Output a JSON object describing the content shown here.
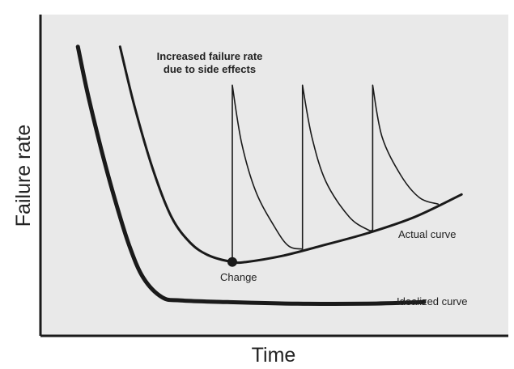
{
  "chart_data": {
    "type": "line",
    "title": "",
    "xlabel": "Time",
    "ylabel": "Failure rate",
    "xlim": [
      0,
      100
    ],
    "ylim": [
      0,
      100
    ],
    "grid": false,
    "legend": "none",
    "background": "#e9e9e9",
    "series": [
      {
        "name": "Idealized curve",
        "color": "#1a1a1a",
        "x": [
          8,
          10,
          13,
          16,
          19,
          22,
          26,
          30,
          40,
          55,
          70,
          82
        ],
        "y": [
          90,
          76,
          58,
          42,
          28,
          18,
          12,
          11,
          10.5,
          10,
          10,
          10.5
        ]
      },
      {
        "name": "Actual curve",
        "color": "#1a1a1a",
        "x": [
          17,
          20,
          24,
          28,
          32,
          36,
          41,
          44,
          52,
          60,
          70,
          80,
          90
        ],
        "y": [
          90,
          72,
          52,
          37,
          29,
          25,
          23,
          23,
          25,
          28,
          32,
          37,
          44
        ]
      },
      {
        "name": "spikes",
        "color": "#1a1a1a",
        "x": [
          41,
          41,
          43,
          46,
          50,
          53,
          56,
          56,
          58,
          61,
          66,
          70,
          71,
          71,
          73,
          77,
          81,
          85
        ],
        "y": [
          23,
          78,
          60,
          45,
          34,
          28,
          27,
          78,
          62,
          48,
          37,
          33,
          33,
          78,
          62,
          50,
          43,
          41
        ]
      }
    ],
    "annotations": {
      "side_effects_line1": "Increased failure rate",
      "side_effects_line2": "due to side effects",
      "change": "Change",
      "actual": "Actual curve",
      "idealized": "Idealized curve"
    },
    "change_point": {
      "x": 41,
      "y": 23
    }
  }
}
